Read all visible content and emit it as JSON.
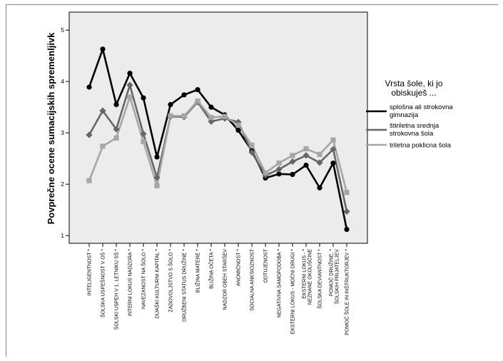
{
  "chart_data": {
    "type": "line",
    "ylabel": "Povprečne ocene sumacijskih spremenljivk",
    "ylim": [
      0.85,
      5.35
    ],
    "yticks": [
      1,
      2,
      3,
      4,
      5
    ],
    "grid": false,
    "legend_position": "right",
    "categories": [
      "INTELIGENTNOST *",
      "ŠOLSKA USPEŠNOST V OŠ *",
      "ŠOLSKI USPEH V 1. LETNIKU SŠ *",
      "INTERNI LOKUS NADZORA *",
      "NAVEZANOST NA ŠOLO *",
      "DIJAŠKI KULTURNI KAPITAL *",
      "ZADOVOLJSTVO S ŠOLO *",
      "DRUŽBENI STATUS DRUŽINE *",
      "BLIŽINA MATERE *",
      "BLIŽINA OČETA *",
      "NADZOR OBEH STARŠEV",
      "ANOMIČNOST *",
      "SOCIALNA ANKSIOZNOST",
      "ODTUJENOST",
      "NEGATIVNA SAMOPODOBA *",
      "EKSTERNI LOKUS - MOČNI DRUGI *",
      "EKSTERNI LOKUS - NEZNANE OKOLIŠČINE *",
      "ŠOLSKA DEVIANTNOST *",
      "POMOČ DRUŽINE, ŠOLSKIH PRIJATELJEV *",
      "POMOČ ŠOLE IN INŠTRUKTORJEV *"
    ],
    "legend_title": [
      "Vrsta šole, ki jo",
      "obiskuješ ..."
    ],
    "series": [
      {
        "name": "splošna ali strokovna gimnazija",
        "name_lines": [
          "splošna ali strokovna",
          "gimnazija"
        ],
        "color": "#000000",
        "marker": "circle",
        "values": [
          3.89,
          4.63,
          3.55,
          4.16,
          3.68,
          2.53,
          3.55,
          3.74,
          3.84,
          3.5,
          3.35,
          3.05,
          2.65,
          2.12,
          2.2,
          2.19,
          2.37,
          1.93,
          2.41,
          1.12
        ]
      },
      {
        "name": "štiriletna srednja strokovna šola",
        "name_lines": [
          "štiriletna srednja",
          "strokovna šola"
        ],
        "color": "#666666",
        "marker": "diamond",
        "values": [
          2.96,
          3.43,
          3.07,
          3.93,
          2.98,
          2.13,
          3.32,
          3.31,
          3.6,
          3.22,
          3.28,
          3.21,
          2.62,
          2.17,
          2.29,
          2.44,
          2.56,
          2.42,
          2.68,
          1.47
        ]
      },
      {
        "name": "triletna poklicna šola",
        "name_lines": [
          "triletna poklicna šola"
        ],
        "color": "#a6a6a6",
        "marker": "square",
        "values": [
          2.07,
          2.74,
          2.9,
          3.7,
          2.83,
          1.97,
          3.33,
          3.33,
          3.62,
          3.3,
          3.32,
          3.15,
          2.76,
          2.22,
          2.41,
          2.56,
          2.69,
          2.58,
          2.86,
          1.84
        ]
      }
    ]
  }
}
